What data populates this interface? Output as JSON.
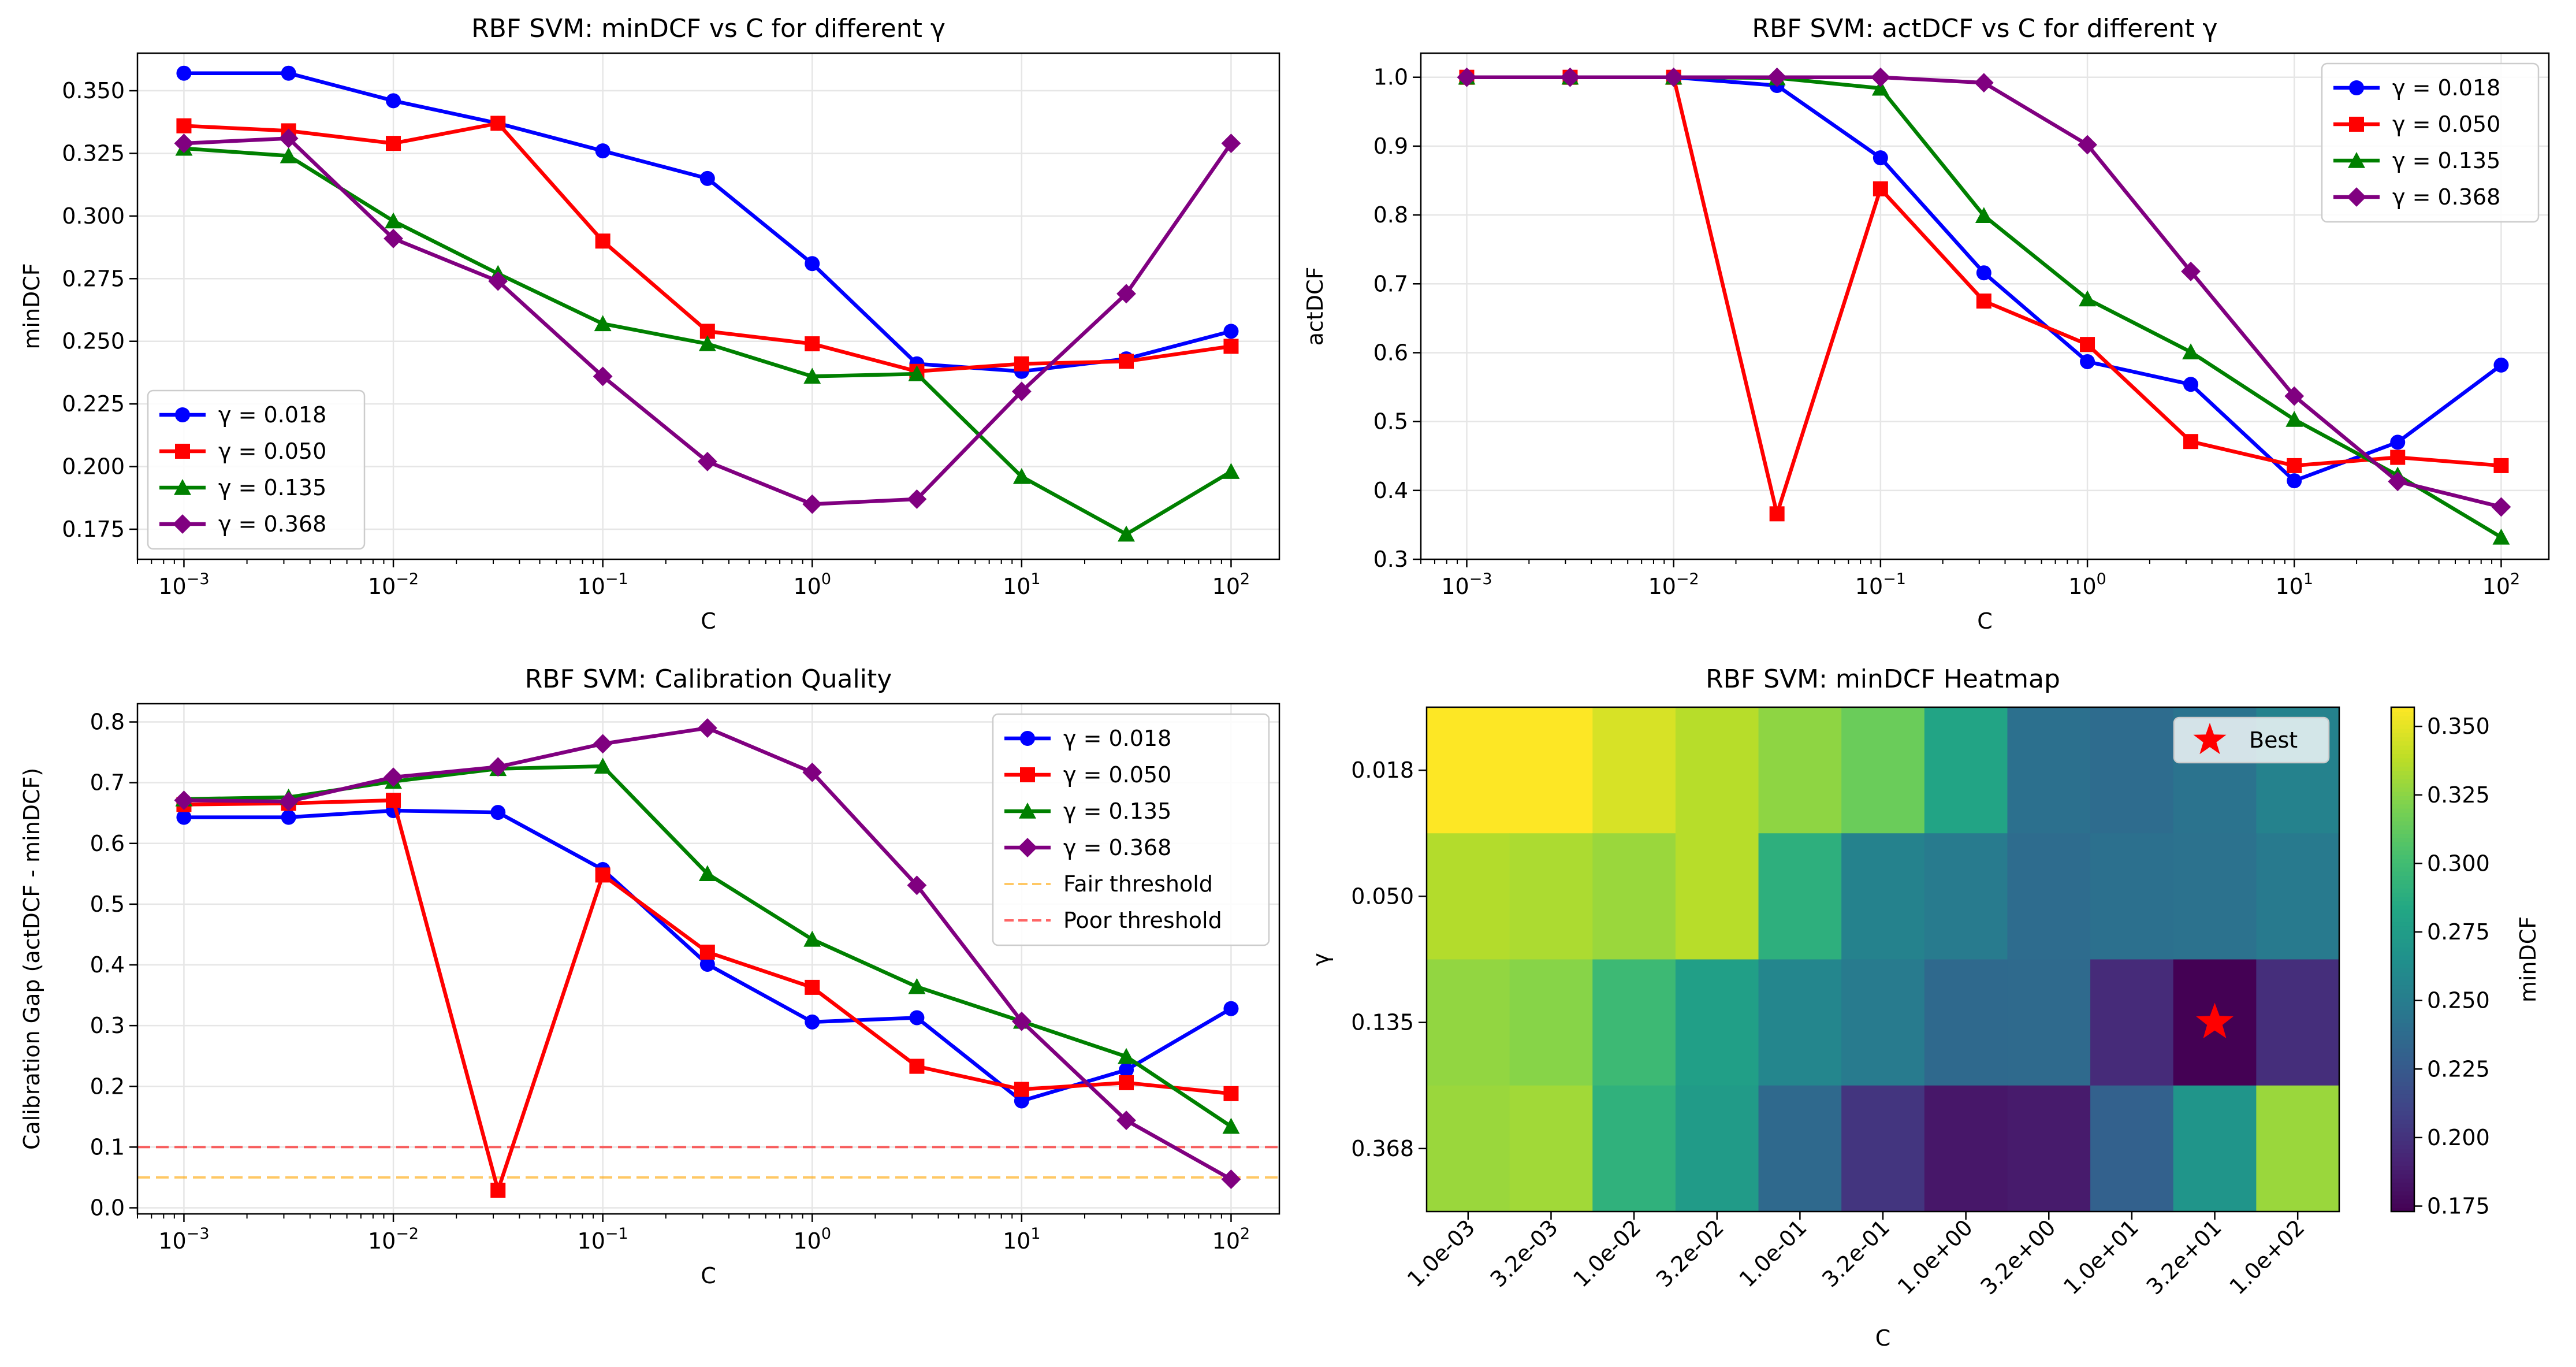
{
  "chart_data": [
    {
      "type": "line",
      "title": "RBF SVM: minDCF vs C for different γ",
      "xlabel": "C",
      "ylabel": "minDCF",
      "xscale": "log",
      "x": [
        0.001,
        0.00316,
        0.01,
        0.0316,
        0.1,
        0.316,
        1,
        3.16,
        10,
        31.6,
        100
      ],
      "xlim": [
        0.0006,
        170
      ],
      "ylim": [
        0.163,
        0.365
      ],
      "yticks": [
        0.175,
        0.2,
        0.225,
        0.25,
        0.275,
        0.3,
        0.325,
        0.35
      ],
      "ytick_labels": [
        "0.175",
        "0.200",
        "0.225",
        "0.250",
        "0.275",
        "0.300",
        "0.325",
        "0.350"
      ],
      "xtick_labels": [
        "10",
        "10",
        "10",
        "10",
        "10",
        "10"
      ],
      "xtick_exponents": [
        "−3",
        "−2",
        "−1",
        "0",
        "1",
        "2"
      ],
      "grid": true,
      "legend_position": "lower-left",
      "series": [
        {
          "name": "γ = 0.018",
          "color": "#0000ff",
          "marker": "circle",
          "values": [
            0.357,
            0.357,
            0.346,
            0.337,
            0.326,
            0.315,
            0.281,
            0.241,
            0.238,
            0.243,
            0.254
          ]
        },
        {
          "name": "γ = 0.050",
          "color": "#ff0000",
          "marker": "square",
          "values": [
            0.336,
            0.334,
            0.329,
            0.337,
            0.29,
            0.254,
            0.249,
            0.238,
            0.241,
            0.242,
            0.248
          ]
        },
        {
          "name": "γ = 0.135",
          "color": "#008000",
          "marker": "triangle",
          "values": [
            0.327,
            0.324,
            0.298,
            0.277,
            0.257,
            0.249,
            0.236,
            0.237,
            0.196,
            0.173,
            0.198
          ]
        },
        {
          "name": "γ = 0.368",
          "color": "#800080",
          "marker": "diamond",
          "values": [
            0.329,
            0.331,
            0.291,
            0.274,
            0.236,
            0.202,
            0.185,
            0.187,
            0.23,
            0.269,
            0.329
          ]
        }
      ]
    },
    {
      "type": "line",
      "title": "RBF SVM: actDCF vs C for different γ",
      "xlabel": "C",
      "ylabel": "actDCF",
      "xscale": "log",
      "x": [
        0.001,
        0.00316,
        0.01,
        0.0316,
        0.1,
        0.316,
        1,
        3.16,
        10,
        31.6,
        100
      ],
      "xlim": [
        0.0006,
        170
      ],
      "ylim": [
        0.3,
        1.035
      ],
      "yticks": [
        0.3,
        0.4,
        0.5,
        0.6,
        0.7,
        0.8,
        0.9,
        1.0
      ],
      "ytick_labels": [
        "0.3",
        "0.4",
        "0.5",
        "0.6",
        "0.7",
        "0.8",
        "0.9",
        "1.0"
      ],
      "xtick_labels": [
        "10",
        "10",
        "10",
        "10",
        "10",
        "10"
      ],
      "xtick_exponents": [
        "−3",
        "−2",
        "−1",
        "0",
        "1",
        "2"
      ],
      "grid": true,
      "legend_position": "upper-right",
      "series": [
        {
          "name": "γ = 0.018",
          "color": "#0000ff",
          "marker": "circle",
          "values": [
            1.0,
            1.0,
            1.0,
            0.988,
            0.883,
            0.716,
            0.587,
            0.554,
            0.414,
            0.47,
            0.582
          ]
        },
        {
          "name": "γ = 0.050",
          "color": "#ff0000",
          "marker": "square",
          "values": [
            1.0,
            1.0,
            1.0,
            0.366,
            0.838,
            0.675,
            0.612,
            0.471,
            0.436,
            0.448,
            0.436
          ]
        },
        {
          "name": "γ = 0.135",
          "color": "#008000",
          "marker": "triangle",
          "values": [
            1.0,
            1.0,
            1.0,
            0.999,
            0.984,
            0.799,
            0.678,
            0.601,
            0.503,
            0.422,
            0.332
          ]
        },
        {
          "name": "γ = 0.368",
          "color": "#800080",
          "marker": "diamond",
          "values": [
            1.0,
            1.0,
            1.0,
            1.0,
            1.0,
            0.992,
            0.902,
            0.718,
            0.537,
            0.413,
            0.376
          ]
        }
      ]
    },
    {
      "type": "line",
      "title": "RBF SVM: Calibration Quality",
      "xlabel": "C",
      "ylabel": "Calibration Gap (actDCF - minDCF)",
      "xscale": "log",
      "x": [
        0.001,
        0.00316,
        0.01,
        0.0316,
        0.1,
        0.316,
        1,
        3.16,
        10,
        31.6,
        100
      ],
      "xlim": [
        0.0006,
        170
      ],
      "ylim": [
        -0.01,
        0.83
      ],
      "yticks": [
        0.0,
        0.1,
        0.2,
        0.3,
        0.4,
        0.5,
        0.6,
        0.7,
        0.8
      ],
      "ytick_labels": [
        "0.0",
        "0.1",
        "0.2",
        "0.3",
        "0.4",
        "0.5",
        "0.6",
        "0.7",
        "0.8"
      ],
      "xtick_labels": [
        "10",
        "10",
        "10",
        "10",
        "10",
        "10"
      ],
      "xtick_exponents": [
        "−3",
        "−2",
        "−1",
        "0",
        "1",
        "2"
      ],
      "grid": true,
      "legend_position": "upper-right",
      "series": [
        {
          "name": "γ = 0.018",
          "color": "#0000ff",
          "marker": "circle",
          "values": [
            0.643,
            0.643,
            0.654,
            0.651,
            0.557,
            0.401,
            0.306,
            0.313,
            0.176,
            0.227,
            0.328
          ]
        },
        {
          "name": "γ = 0.050",
          "color": "#ff0000",
          "marker": "square",
          "values": [
            0.664,
            0.666,
            0.671,
            0.029,
            0.548,
            0.421,
            0.363,
            0.233,
            0.195,
            0.206,
            0.188
          ]
        },
        {
          "name": "γ = 0.135",
          "color": "#008000",
          "marker": "triangle",
          "values": [
            0.673,
            0.676,
            0.702,
            0.723,
            0.727,
            0.55,
            0.442,
            0.364,
            0.307,
            0.249,
            0.134
          ]
        },
        {
          "name": "γ = 0.368",
          "color": "#800080",
          "marker": "diamond",
          "values": [
            0.671,
            0.669,
            0.709,
            0.726,
            0.764,
            0.79,
            0.717,
            0.531,
            0.307,
            0.144,
            0.047
          ]
        }
      ],
      "hlines": [
        {
          "name": "Fair threshold",
          "y": 0.05,
          "color": "#ffa500",
          "style": "dashed"
        },
        {
          "name": "Poor threshold",
          "y": 0.1,
          "color": "#ff0000",
          "style": "dashed"
        }
      ]
    },
    {
      "type": "heatmap",
      "title": "RBF SVM: minDCF Heatmap",
      "xlabel": "C",
      "ylabel": "γ",
      "x_categories": [
        "1.0e-03",
        "3.2e-03",
        "1.0e-02",
        "3.2e-02",
        "1.0e-01",
        "3.2e-01",
        "1.0e+00",
        "3.2e+00",
        "1.0e+01",
        "3.2e+01",
        "1.0e+02"
      ],
      "y_categories": [
        "0.018",
        "0.050",
        "0.135",
        "0.368"
      ],
      "values": [
        [
          0.357,
          0.357,
          0.346,
          0.337,
          0.326,
          0.315,
          0.281,
          0.241,
          0.238,
          0.243,
          0.254
        ],
        [
          0.336,
          0.334,
          0.329,
          0.337,
          0.29,
          0.254,
          0.249,
          0.238,
          0.241,
          0.242,
          0.248
        ],
        [
          0.327,
          0.324,
          0.298,
          0.277,
          0.257,
          0.249,
          0.236,
          0.237,
          0.196,
          0.173,
          0.198
        ],
        [
          0.329,
          0.331,
          0.291,
          0.274,
          0.236,
          0.202,
          0.185,
          0.187,
          0.23,
          0.269,
          0.329
        ]
      ],
      "vmin": 0.173,
      "vmax": 0.357,
      "colormap": "viridis",
      "colorbar_label": "minDCF",
      "colorbar_ticks": [
        0.175,
        0.2,
        0.225,
        0.25,
        0.275,
        0.3,
        0.325,
        0.35
      ],
      "colorbar_tick_labels": [
        "0.175",
        "0.200",
        "0.225",
        "0.250",
        "0.275",
        "0.300",
        "0.325",
        "0.350"
      ],
      "best": {
        "row": 2,
        "col": 9,
        "label": "Best",
        "color": "#ff0000"
      },
      "legend_position": "upper-right"
    }
  ]
}
